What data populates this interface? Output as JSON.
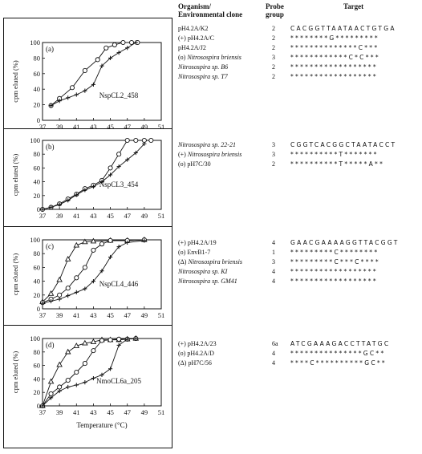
{
  "table": {
    "header": {
      "organism": "Organism/",
      "organism2": "Environmental clone",
      "probe": "Probe",
      "probe2": "group",
      "target": "Target"
    },
    "sections": [
      {
        "rows": [
          {
            "pre": "",
            "name": "pH4.2A/K2",
            "italic": false,
            "group": "2",
            "seq": "CACGGTTAATAACTGTGA"
          },
          {
            "pre": "(+) ",
            "name": "pH4.2A/C",
            "italic": false,
            "group": "2",
            "seq": "********G*********"
          },
          {
            "pre": "",
            "name": "pH4.2A/J2",
            "italic": false,
            "group": "2",
            "seq": "**************C***"
          },
          {
            "pre": "(o) ",
            "name": "Nitrosospira briensis",
            "italic": true,
            "group": "3",
            "seq": "************C*C***"
          },
          {
            "pre": "",
            "name": "Nitrosospira sp. B6",
            "italic": true,
            "group": "2",
            "seq": "******************"
          },
          {
            "pre": "",
            "name": "Nitrosospira sp. T7",
            "italic": true,
            "group": "2",
            "seq": "******************"
          }
        ]
      },
      {
        "rows": [
          {
            "pre": "",
            "name": "Nitrosospira sp. 22-21",
            "italic": true,
            "group": "3",
            "seq": "CGGTCACGGCTAATACCT"
          },
          {
            "pre": "(+) ",
            "name": "Nitrosospira briensis",
            "italic": true,
            "group": "3",
            "seq": "**********T*******"
          },
          {
            "pre": "(o) ",
            "name": "pH7C/30",
            "italic": false,
            "group": "2",
            "seq": "**********T*****A**"
          }
        ]
      },
      {
        "rows": [
          {
            "pre": "(+) ",
            "name": "pH4.2A/19",
            "italic": false,
            "group": "4",
            "seq": "GAACGAAAAGGTTACGGT"
          },
          {
            "pre": "(o) ",
            "name": "EnvB1-7",
            "italic": false,
            "group": "1",
            "seq": "*********C********"
          },
          {
            "pre": "(Δ) ",
            "name": "Nitrosospira briensis",
            "italic": true,
            "group": "3",
            "seq": "*********C***C****"
          },
          {
            "pre": "",
            "name": "Nitrosospira sp. KI",
            "italic": true,
            "group": "4",
            "seq": "******************"
          },
          {
            "pre": "",
            "name": "Nitrosospira sp. GM41",
            "italic": true,
            "group": "4",
            "seq": "******************"
          }
        ]
      },
      {
        "rows": [
          {
            "pre": "(+) ",
            "name": "pH4.2A/23",
            "italic": false,
            "group": "6a",
            "seq": "ATCGAAAGACCTTATGC"
          },
          {
            "pre": "(o) ",
            "name": "pH4.2A/D",
            "italic": false,
            "group": "4",
            "seq": "***************GC**"
          },
          {
            "pre": "(Δ) ",
            "name": "pH7C/56",
            "italic": false,
            "group": "4",
            "seq": "****C**********GC**"
          }
        ]
      }
    ]
  },
  "chart_data": [
    {
      "type": "line",
      "panel_label": "(a)",
      "probe_label": "NspCL2_458",
      "ylabel": "cpm eluted (%)",
      "xlabel": "",
      "xlim": [
        37,
        51
      ],
      "ylim": [
        0,
        100
      ],
      "xticks": [
        37,
        39,
        41,
        43,
        45,
        47,
        49,
        51
      ],
      "yticks": [
        0,
        20,
        40,
        60,
        80,
        100
      ],
      "series": [
        {
          "marker": "circle",
          "points": [
            [
              38,
              19
            ],
            [
              39,
              28
            ],
            [
              40.5,
              42
            ],
            [
              42,
              64
            ],
            [
              43.5,
              78
            ],
            [
              44.5,
              93
            ],
            [
              45.5,
              97
            ],
            [
              46.5,
              100
            ],
            [
              47.5,
              100
            ],
            [
              48.2,
              100
            ]
          ]
        },
        {
          "marker": "plus",
          "points": [
            [
              38,
              19
            ],
            [
              39,
              25
            ],
            [
              40,
              29
            ],
            [
              41,
              33
            ],
            [
              42,
              38
            ],
            [
              43,
              46
            ],
            [
              44,
              70
            ],
            [
              45,
              80
            ],
            [
              46,
              87
            ],
            [
              47,
              93
            ],
            [
              48,
              100
            ]
          ]
        }
      ]
    },
    {
      "type": "line",
      "panel_label": "(b)",
      "probe_label": "NspCL3_454",
      "ylabel": "cpm eluted (%)",
      "xlabel": "",
      "xlim": [
        37,
        51
      ],
      "ylim": [
        0,
        100
      ],
      "xticks": [
        37,
        39,
        41,
        43,
        45,
        47,
        49,
        51
      ],
      "yticks": [
        0,
        20,
        40,
        60,
        80,
        100
      ],
      "series": [
        {
          "marker": "circle",
          "points": [
            [
              37,
              0
            ],
            [
              38,
              3
            ],
            [
              39,
              8
            ],
            [
              40,
              15
            ],
            [
              41,
              22
            ],
            [
              42,
              30
            ],
            [
              43,
              35
            ],
            [
              44,
              42
            ],
            [
              45,
              60
            ],
            [
              46,
              80
            ],
            [
              47,
              100
            ],
            [
              48,
              100
            ],
            [
              49,
              100
            ],
            [
              49.8,
              100
            ]
          ]
        },
        {
          "marker": "plus",
          "points": [
            [
              37,
              0
            ],
            [
              38,
              3
            ],
            [
              39,
              7
            ],
            [
              40,
              13
            ],
            [
              41,
              21
            ],
            [
              42,
              28
            ],
            [
              43,
              33
            ],
            [
              44,
              40
            ],
            [
              45,
              50
            ],
            [
              46,
              62
            ],
            [
              47,
              72
            ],
            [
              48,
              82
            ],
            [
              49,
              95
            ]
          ]
        }
      ]
    },
    {
      "type": "line",
      "panel_label": "(c)",
      "probe_label": "NspCL4_446",
      "ylabel": "cpm eluted (%)",
      "xlabel": "",
      "xlim": [
        37,
        51
      ],
      "ylim": [
        0,
        100
      ],
      "xticks": [
        37,
        39,
        41,
        43,
        45,
        47,
        49,
        51
      ],
      "yticks": [
        0,
        20,
        40,
        60,
        80,
        100
      ],
      "series": [
        {
          "marker": "triangle",
          "points": [
            [
              37,
              10
            ],
            [
              38,
              22
            ],
            [
              39,
              42
            ],
            [
              40,
              72
            ],
            [
              41,
              92
            ],
            [
              42,
              97
            ],
            [
              43,
              98
            ],
            [
              45,
              99
            ],
            [
              47,
              99
            ],
            [
              49,
              100
            ]
          ]
        },
        {
          "marker": "circle",
          "points": [
            [
              37,
              9
            ],
            [
              38,
              14
            ],
            [
              39,
              20
            ],
            [
              40,
              30
            ],
            [
              41,
              45
            ],
            [
              42,
              60
            ],
            [
              43,
              85
            ],
            [
              44,
              94
            ],
            [
              45,
              99
            ],
            [
              47,
              99
            ],
            [
              49,
              100
            ]
          ]
        },
        {
          "marker": "plus",
          "points": [
            [
              37,
              8
            ],
            [
              38,
              11
            ],
            [
              39,
              14
            ],
            [
              40,
              19
            ],
            [
              41,
              24
            ],
            [
              42,
              29
            ],
            [
              43,
              40
            ],
            [
              44,
              55
            ],
            [
              45,
              75
            ],
            [
              46,
              90
            ],
            [
              47,
              96
            ],
            [
              49,
              99
            ]
          ]
        }
      ]
    },
    {
      "type": "line",
      "panel_label": "(d)",
      "probe_label": "NmoCL6a_205",
      "ylabel": "cpm eluted (%)",
      "xlabel": "Temperature (°C)",
      "xlim": [
        37,
        51
      ],
      "ylim": [
        0,
        100
      ],
      "xticks": [
        37,
        39,
        41,
        43,
        45,
        47,
        49,
        51
      ],
      "yticks": [
        0,
        20,
        40,
        60,
        80,
        100
      ],
      "series": [
        {
          "marker": "triangle",
          "points": [
            [
              37,
              0
            ],
            [
              38,
              36
            ],
            [
              39,
              61
            ],
            [
              40,
              80
            ],
            [
              41,
              89
            ],
            [
              42,
              93
            ],
            [
              43,
              95
            ],
            [
              44,
              98
            ],
            [
              45,
              98
            ],
            [
              46,
              98
            ],
            [
              47,
              99
            ],
            [
              48,
              100
            ]
          ]
        },
        {
          "marker": "circle",
          "points": [
            [
              37,
              0
            ],
            [
              38,
              18
            ],
            [
              39,
              28
            ],
            [
              40,
              38
            ],
            [
              41,
              50
            ],
            [
              42,
              63
            ],
            [
              43,
              82
            ],
            [
              44,
              97
            ],
            [
              45,
              98
            ],
            [
              46,
              99
            ],
            [
              47,
              99
            ],
            [
              48,
              100
            ]
          ]
        },
        {
          "marker": "plus",
          "points": [
            [
              37,
              0
            ],
            [
              38,
              12
            ],
            [
              39,
              22
            ],
            [
              40,
              28
            ],
            [
              41,
              31
            ],
            [
              42,
              35
            ],
            [
              43,
              41
            ],
            [
              44,
              46
            ],
            [
              45,
              55
            ],
            [
              46,
              90
            ],
            [
              47,
              99
            ],
            [
              48,
              100
            ]
          ]
        }
      ]
    }
  ]
}
